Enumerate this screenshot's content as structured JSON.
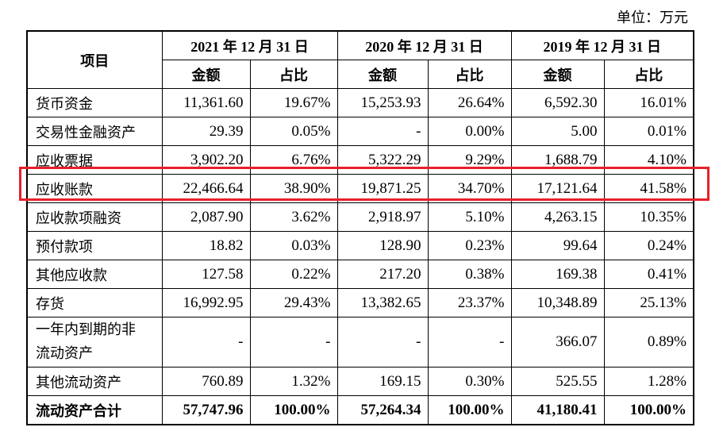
{
  "unit_label": "单位：万元",
  "header": {
    "item_label": "项目",
    "periods": [
      "2021 年 12 月 31 日",
      "2020 年 12 月 31 日",
      "2019 年 12 月 31 日"
    ],
    "amount_label": "金额",
    "ratio_label": "占比"
  },
  "rows": [
    {
      "name": "货币资金",
      "values": [
        "11,361.60",
        "19.67%",
        "15,253.93",
        "26.64%",
        "6,592.30",
        "16.01%"
      ]
    },
    {
      "name": "交易性金融资产",
      "values": [
        "29.39",
        "0.05%",
        "-",
        "0.00%",
        "5.00",
        "0.01%"
      ]
    },
    {
      "name": "应收票据",
      "values": [
        "3,902.20",
        "6.76%",
        "5,322.29",
        "9.29%",
        "1,688.79",
        "4.10%"
      ]
    },
    {
      "name": "应收账款",
      "values": [
        "22,466.64",
        "38.90%",
        "19,871.25",
        "34.70%",
        "17,121.64",
        "41.58%"
      ]
    },
    {
      "name": "应收款项融资",
      "values": [
        "2,087.90",
        "3.62%",
        "2,918.97",
        "5.10%",
        "4,263.15",
        "10.35%"
      ]
    },
    {
      "name": "预付款项",
      "values": [
        "18.82",
        "0.03%",
        "128.90",
        "0.23%",
        "99.64",
        "0.24%"
      ]
    },
    {
      "name": "其他应收款",
      "values": [
        "127.58",
        "0.22%",
        "217.20",
        "0.38%",
        "169.38",
        "0.41%"
      ]
    },
    {
      "name": "存货",
      "values": [
        "16,992.95",
        "29.43%",
        "13,382.65",
        "23.37%",
        "10,348.89",
        "25.13%"
      ]
    },
    {
      "name_line1": "一年内到期的非",
      "name_line2": "流动资产",
      "values": [
        "-",
        "-",
        "-",
        "-",
        "366.07",
        "0.89%"
      ]
    },
    {
      "name": "其他流动资产",
      "values": [
        "760.89",
        "1.32%",
        "169.15",
        "0.30%",
        "525.55",
        "1.28%"
      ]
    },
    {
      "name": "流动资产合计",
      "values": [
        "57,747.96",
        "100.00%",
        "57,264.34",
        "100.00%",
        "41,180.41",
        "100.00%"
      ]
    }
  ],
  "highlight_color": "#e8202a"
}
